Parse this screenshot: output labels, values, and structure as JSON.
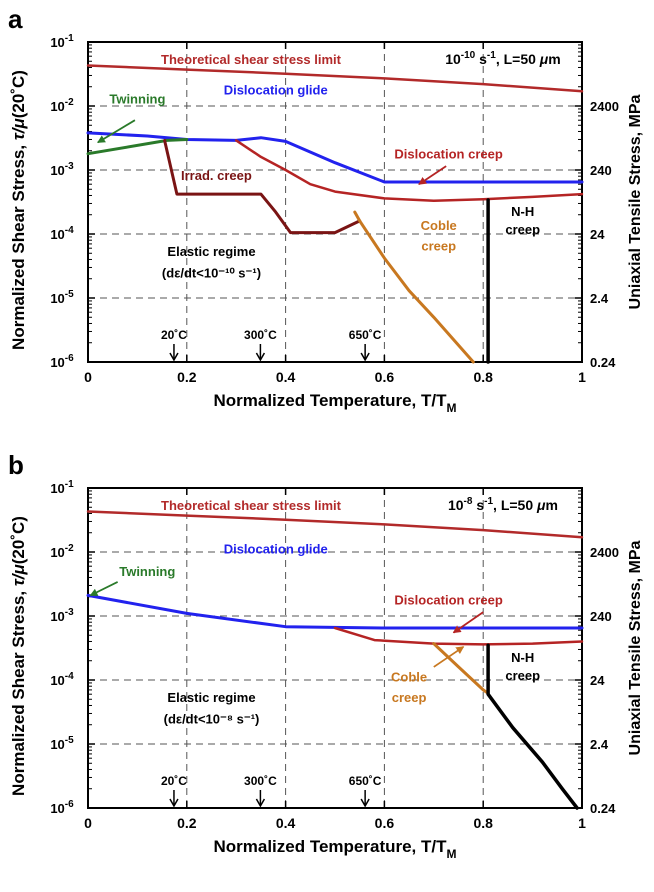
{
  "chart_data": [
    {
      "panel_label": "a",
      "type": "line",
      "condition_label": [
        "10",
        "-10",
        " s",
        "-1",
        ", L=50 ",
        "μ",
        "m"
      ],
      "xlabel": [
        "Normalized Temperature, T/T",
        "M"
      ],
      "ylabel": [
        "Normalized Shear Stress, ",
        "τ/μ",
        "(20˚C)"
      ],
      "y2label": "Uniaxial Tensile Stress, MPa",
      "xlim": [
        0,
        1
      ],
      "ylim": [
        1e-06,
        0.1
      ],
      "yscale": "log",
      "grid": true,
      "x_ticks": [
        "0",
        "0.2",
        "0.4",
        "0.6",
        "0.8",
        "1"
      ],
      "y_ticks": [
        {
          "base": "10",
          "exp": "-6"
        },
        {
          "base": "10",
          "exp": "-5"
        },
        {
          "base": "10",
          "exp": "-4"
        },
        {
          "base": "10",
          "exp": "-3"
        },
        {
          "base": "10",
          "exp": "-2"
        },
        {
          "base": "10",
          "exp": "-1"
        }
      ],
      "y2_ticks": [
        {
          "label": "0.24",
          "value": 1e-06
        },
        {
          "label": "2.4",
          "value": 1e-05
        },
        {
          "label": "24",
          "value": 0.0001
        },
        {
          "label": "240",
          "value": 0.001
        },
        {
          "label": "2400",
          "value": 0.01
        }
      ],
      "temperature_markers": [
        {
          "label": "20˚C",
          "x": 0.174
        },
        {
          "label": "300˚C",
          "x": 0.349
        },
        {
          "label": "650˚C",
          "x": 0.561
        }
      ],
      "colors": {
        "theoretical": "#b22a2a",
        "glide": "#2222ee",
        "twinning": "#2a7a2a",
        "creep": "#b52424",
        "irrad": "#7a1414",
        "coble": "#c87820",
        "nh": "#000000"
      },
      "regions": [
        {
          "text": "Theoretical shear stress limit",
          "color": "#b22a2a",
          "x": 0.33,
          "y": 0.045
        },
        {
          "text": "Twinning",
          "color": "#2a7a2a",
          "x": 0.1,
          "y": 0.011
        },
        {
          "text": "Dislocation glide",
          "color": "#2222ee",
          "x": 0.38,
          "y": 0.015
        },
        {
          "text": "Dislocation creep",
          "color": "#b52424",
          "x": 0.73,
          "y": 0.0015
        },
        {
          "text": "Irrad. creep",
          "color": "#7a1414",
          "x": 0.26,
          "y": 0.0007
        },
        {
          "text": "Coble",
          "color": "#c87820",
          "x": 0.71,
          "y": 0.000115
        },
        {
          "text": "creep",
          "color": "#c87820",
          "x": 0.71,
          "y": 5.5e-05
        },
        {
          "text": "N-H",
          "color": "#000000",
          "x": 0.88,
          "y": 0.00019
        },
        {
          "text": "creep",
          "color": "#000000",
          "x": 0.88,
          "y": 0.0001
        },
        {
          "text": "Elastic regime",
          "color": "#000000",
          "x": 0.25,
          "y": 4.5e-05
        },
        {
          "text": "(dε/dt<10⁻¹⁰ s⁻¹)",
          "color": "#000000",
          "x": 0.25,
          "y": 2.1e-05
        }
      ],
      "arrows": [
        {
          "from": [
            0.095,
            0.006
          ],
          "to": [
            0.02,
            0.0027
          ],
          "color": "#2a7a2a"
        },
        {
          "from": [
            0.725,
            0.00115
          ],
          "to": [
            0.67,
            0.0006
          ],
          "color": "#b52424"
        }
      ],
      "series": [
        {
          "key": "theoretical",
          "color": "#b22a2a",
          "width": 2.5,
          "points": [
            [
              0,
              0.043
            ],
            [
              0.2,
              0.037
            ],
            [
              0.4,
              0.032
            ],
            [
              0.6,
              0.027
            ],
            [
              0.8,
              0.022
            ],
            [
              1,
              0.017
            ]
          ]
        },
        {
          "key": "glide",
          "color": "#2222ee",
          "width": 3,
          "points": [
            [
              0,
              0.0038
            ],
            [
              0.12,
              0.0034
            ],
            [
              0.2,
              0.003
            ],
            [
              0.3,
              0.0029
            ],
            [
              0.35,
              0.0032
            ],
            [
              0.4,
              0.0028
            ],
            [
              0.5,
              0.0013
            ],
            [
              0.6,
              0.00065
            ],
            [
              1,
              0.00065
            ]
          ]
        },
        {
          "key": "twinning",
          "color": "#2a7a2a",
          "width": 3,
          "points": [
            [
              0,
              0.0018
            ],
            [
              0.16,
              0.0029
            ],
            [
              0.2,
              0.003
            ]
          ]
        },
        {
          "key": "creep",
          "color": "#b52424",
          "width": 2.5,
          "points": [
            [
              0.3,
              0.0029
            ],
            [
              0.35,
              0.0016
            ],
            [
              0.4,
              0.001
            ],
            [
              0.45,
              0.0006
            ],
            [
              0.5,
              0.00046
            ],
            [
              0.6,
              0.00036
            ],
            [
              0.7,
              0.00033
            ],
            [
              0.8,
              0.00035
            ],
            [
              0.9,
              0.00038
            ],
            [
              1,
              0.00042
            ]
          ]
        },
        {
          "key": "irrad",
          "color": "#7a1414",
          "width": 3,
          "points": [
            [
              0.155,
              0.0029
            ],
            [
              0.18,
              0.00042
            ],
            [
              0.35,
              0.00042
            ],
            [
              0.38,
              0.00022
            ],
            [
              0.41,
              0.000105
            ],
            [
              0.5,
              0.000105
            ],
            [
              0.55,
              0.00016
            ]
          ]
        },
        {
          "key": "coble",
          "color": "#c87820",
          "width": 3,
          "points": [
            [
              0.54,
              0.00022
            ],
            [
              0.55,
              0.00016
            ],
            [
              0.6,
              4.2e-05
            ],
            [
              0.65,
              1.3e-05
            ],
            [
              0.7,
              5e-06
            ],
            [
              0.78,
              1e-06
            ]
          ]
        },
        {
          "key": "nh",
          "color": "#000000",
          "width": 3.5,
          "points": [
            [
              0.81,
              0.00034
            ],
            [
              0.81,
              1e-06
            ]
          ]
        }
      ]
    },
    {
      "panel_label": "b",
      "type": "line",
      "condition_label": [
        "10",
        "-8",
        " s",
        "-1",
        ", L=50 ",
        "μ",
        "m"
      ],
      "xlabel": [
        "Normalized Temperature, T/T",
        "M"
      ],
      "ylabel": [
        "Normalized Shear Stress, ",
        "τ/μ",
        "(20˚C)"
      ],
      "y2label": "Uniaxial Tensile Stress, MPa",
      "xlim": [
        0,
        1
      ],
      "ylim": [
        1e-06,
        0.1
      ],
      "yscale": "log",
      "grid": true,
      "x_ticks": [
        "0",
        "0.2",
        "0.4",
        "0.6",
        "0.8",
        "1"
      ],
      "y_ticks": [
        {
          "base": "10",
          "exp": "-6"
        },
        {
          "base": "10",
          "exp": "-5"
        },
        {
          "base": "10",
          "exp": "-4"
        },
        {
          "base": "10",
          "exp": "-3"
        },
        {
          "base": "10",
          "exp": "-2"
        },
        {
          "base": "10",
          "exp": "-1"
        }
      ],
      "y2_ticks": [
        {
          "label": "0.24",
          "value": 1e-06
        },
        {
          "label": "2.4",
          "value": 1e-05
        },
        {
          "label": "24",
          "value": 0.0001
        },
        {
          "label": "240",
          "value": 0.001
        },
        {
          "label": "2400",
          "value": 0.01
        }
      ],
      "temperature_markers": [
        {
          "label": "20˚C",
          "x": 0.174
        },
        {
          "label": "300˚C",
          "x": 0.349
        },
        {
          "label": "650˚C",
          "x": 0.561
        }
      ],
      "colors": {
        "theoretical": "#b22a2a",
        "glide": "#2222ee",
        "twinning": "#2a7a2a",
        "creep": "#b52424",
        "coble": "#c87820",
        "nh": "#000000"
      },
      "regions": [
        {
          "text": "Theoretical shear stress limit",
          "color": "#b22a2a",
          "x": 0.33,
          "y": 0.045
        },
        {
          "text": "Twinning",
          "color": "#2a7a2a",
          "x": 0.12,
          "y": 0.0042
        },
        {
          "text": "Dislocation glide",
          "color": "#2222ee",
          "x": 0.38,
          "y": 0.0095
        },
        {
          "text": "Dislocation creep",
          "color": "#b52424",
          "x": 0.73,
          "y": 0.0015
        },
        {
          "text": "Coble",
          "color": "#c87820",
          "x": 0.65,
          "y": 9.5e-05
        },
        {
          "text": "creep",
          "color": "#c87820",
          "x": 0.65,
          "y": 4.5e-05
        },
        {
          "text": "N-H",
          "color": "#000000",
          "x": 0.88,
          "y": 0.00019
        },
        {
          "text": "creep",
          "color": "#000000",
          "x": 0.88,
          "y": 0.0001
        },
        {
          "text": "Elastic regime",
          "color": "#000000",
          "x": 0.25,
          "y": 4.5e-05
        },
        {
          "text": "(dε/dt<10⁻⁸ s⁻¹)",
          "color": "#000000",
          "x": 0.25,
          "y": 2.1e-05
        }
      ],
      "arrows": [
        {
          "from": [
            0.06,
            0.0034
          ],
          "to": [
            0.005,
            0.0021
          ],
          "color": "#2a7a2a"
        },
        {
          "from": [
            0.8,
            0.00115
          ],
          "to": [
            0.74,
            0.00055
          ],
          "color": "#b52424"
        },
        {
          "from": [
            0.7,
            0.00016
          ],
          "to": [
            0.76,
            0.00033
          ],
          "color": "#c87820"
        }
      ],
      "series": [
        {
          "key": "theoretical",
          "color": "#b22a2a",
          "width": 2.5,
          "points": [
            [
              0,
              0.043
            ],
            [
              0.2,
              0.037
            ],
            [
              0.4,
              0.032
            ],
            [
              0.6,
              0.027
            ],
            [
              0.8,
              0.022
            ],
            [
              1,
              0.017
            ]
          ]
        },
        {
          "key": "glide",
          "color": "#2222ee",
          "width": 3,
          "points": [
            [
              0,
              0.0021
            ],
            [
              0.2,
              0.0011
            ],
            [
              0.4,
              0.00068
            ],
            [
              0.6,
              0.00065
            ],
            [
              0.8,
              0.00065
            ],
            [
              1,
              0.00065
            ]
          ]
        },
        {
          "key": "creep",
          "color": "#b52424",
          "width": 2.5,
          "points": [
            [
              0.5,
              0.00065
            ],
            [
              0.58,
              0.00042
            ],
            [
              0.7,
              0.00037
            ],
            [
              0.8,
              0.00036
            ],
            [
              0.9,
              0.00037
            ],
            [
              1,
              0.0004
            ]
          ]
        },
        {
          "key": "coble",
          "color": "#c87820",
          "width": 3,
          "points": [
            [
              0.7,
              0.00037
            ],
            [
              0.75,
              0.00016
            ],
            [
              0.8,
              7e-05
            ],
            [
              0.81,
              6.2e-05
            ]
          ]
        },
        {
          "key": "nh",
          "color": "#000000",
          "width": 3.5,
          "points": [
            [
              0.81,
              0.00035
            ],
            [
              0.81,
              6e-05
            ],
            [
              0.86,
              1.8e-05
            ],
            [
              0.92,
              5.2e-06
            ],
            [
              0.96,
              2e-06
            ],
            [
              0.99,
              1e-06
            ]
          ]
        }
      ]
    }
  ]
}
